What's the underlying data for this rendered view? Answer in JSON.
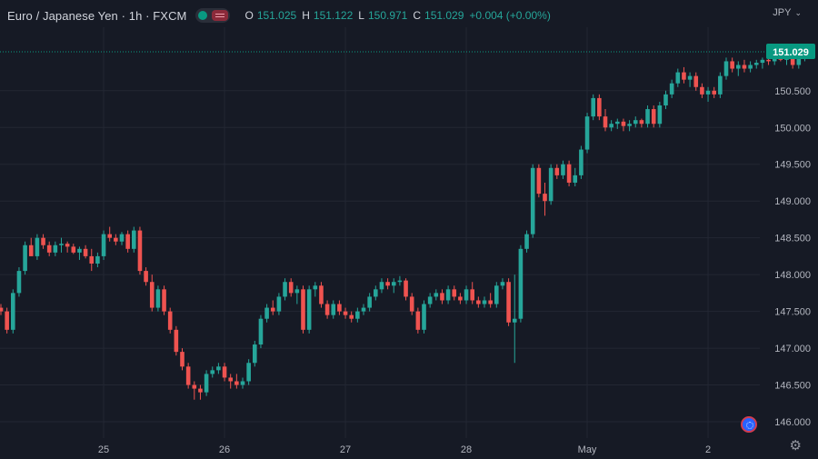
{
  "header": {
    "title": "Euro / Japanese Yen · 1h · FXCM",
    "ohlc": {
      "o_label": "O",
      "o": "151.025",
      "h_label": "H",
      "h": "151.122",
      "l_label": "L",
      "l": "150.971",
      "c_label": "C",
      "c": "151.029",
      "change": "+0.004 (+0.00%)"
    }
  },
  "currency_menu": {
    "label": "JPY"
  },
  "icons": {
    "settings": "gear-icon",
    "logo": "tradingview-logo-icon",
    "visibility": "eye-toggle-icon"
  },
  "colors": {
    "up": "#26a69a",
    "down": "#ef5350",
    "background": "#161a25",
    "last_price": "#089981"
  },
  "chart_data": {
    "type": "candlestick",
    "instrument": "Euro / Japanese Yen",
    "interval": "1h",
    "source": "FXCM",
    "currency": "JPY",
    "ylim": [
      145.9,
      151.5
    ],
    "y_ticks": [
      "146.000",
      "146.500",
      "147.000",
      "147.500",
      "148.000",
      "148.500",
      "149.000",
      "149.500",
      "150.000",
      "150.500"
    ],
    "x_ticks": [
      {
        "label": "25",
        "index": 17
      },
      {
        "label": "26",
        "index": 37
      },
      {
        "label": "27",
        "index": 57
      },
      {
        "label": "28",
        "index": 77
      },
      {
        "label": "May",
        "index": 97
      },
      {
        "label": "2",
        "index": 117
      }
    ],
    "last_price": 151.029,
    "last_price_label": "151.029",
    "grid": true,
    "ohlc": [
      [
        147.55,
        147.6,
        147.45,
        147.5
      ],
      [
        147.5,
        147.55,
        147.2,
        147.25
      ],
      [
        147.25,
        147.8,
        147.2,
        147.75
      ],
      [
        147.75,
        148.1,
        147.7,
        148.05
      ],
      [
        148.05,
        148.45,
        148.0,
        148.4
      ],
      [
        148.4,
        148.5,
        148.3,
        148.25
      ],
      [
        148.25,
        148.55,
        148.2,
        148.5
      ],
      [
        148.5,
        148.55,
        148.35,
        148.4
      ],
      [
        148.4,
        148.45,
        148.25,
        148.3
      ],
      [
        148.3,
        148.45,
        148.25,
        148.4
      ],
      [
        148.4,
        148.5,
        148.3,
        148.42
      ],
      [
        148.42,
        148.45,
        148.3,
        148.38
      ],
      [
        148.38,
        148.42,
        148.28,
        148.3
      ],
      [
        148.3,
        148.38,
        148.2,
        148.35
      ],
      [
        148.35,
        148.4,
        148.22,
        148.25
      ],
      [
        148.25,
        148.35,
        148.05,
        148.15
      ],
      [
        148.15,
        148.3,
        148.1,
        148.25
      ],
      [
        148.25,
        148.6,
        148.2,
        148.55
      ],
      [
        148.55,
        148.65,
        148.45,
        148.5
      ],
      [
        148.5,
        148.55,
        148.4,
        148.45
      ],
      [
        148.45,
        148.58,
        148.4,
        148.55
      ],
      [
        148.55,
        148.6,
        148.3,
        148.35
      ],
      [
        148.35,
        148.65,
        148.3,
        148.6
      ],
      [
        148.6,
        148.65,
        148.0,
        148.05
      ],
      [
        148.05,
        148.1,
        147.85,
        147.9
      ],
      [
        147.9,
        148.0,
        147.5,
        147.55
      ],
      [
        147.55,
        147.85,
        147.5,
        147.8
      ],
      [
        147.8,
        147.85,
        147.45,
        147.5
      ],
      [
        147.5,
        147.55,
        147.2,
        147.25
      ],
      [
        147.25,
        147.3,
        146.9,
        146.95
      ],
      [
        146.95,
        147.0,
        146.7,
        146.75
      ],
      [
        146.75,
        146.8,
        146.45,
        146.5
      ],
      [
        146.5,
        146.55,
        146.3,
        146.45
      ],
      [
        146.45,
        146.5,
        146.3,
        146.4
      ],
      [
        146.4,
        146.7,
        146.35,
        146.65
      ],
      [
        146.65,
        146.75,
        146.6,
        146.7
      ],
      [
        146.7,
        146.8,
        146.65,
        146.75
      ],
      [
        146.75,
        146.8,
        146.55,
        146.6
      ],
      [
        146.6,
        146.65,
        146.45,
        146.55
      ],
      [
        146.55,
        146.65,
        146.45,
        146.5
      ],
      [
        146.5,
        146.6,
        146.45,
        146.55
      ],
      [
        146.55,
        146.85,
        146.5,
        146.8
      ],
      [
        146.8,
        147.1,
        146.75,
        147.05
      ],
      [
        147.05,
        147.45,
        147.0,
        147.4
      ],
      [
        147.4,
        147.6,
        147.35,
        147.55
      ],
      [
        147.55,
        147.65,
        147.45,
        147.5
      ],
      [
        147.5,
        147.75,
        147.45,
        147.7
      ],
      [
        147.7,
        147.95,
        147.65,
        147.9
      ],
      [
        147.9,
        147.95,
        147.7,
        147.75
      ],
      [
        147.75,
        147.85,
        147.6,
        147.8
      ],
      [
        147.8,
        147.85,
        147.2,
        147.25
      ],
      [
        147.25,
        147.85,
        147.2,
        147.8
      ],
      [
        147.8,
        147.9,
        147.7,
        147.85
      ],
      [
        147.85,
        147.9,
        147.55,
        147.6
      ],
      [
        147.6,
        147.65,
        147.4,
        147.45
      ],
      [
        147.45,
        147.65,
        147.4,
        147.6
      ],
      [
        147.6,
        147.65,
        147.45,
        147.5
      ],
      [
        147.5,
        147.55,
        147.4,
        147.45
      ],
      [
        147.45,
        147.5,
        147.35,
        147.4
      ],
      [
        147.4,
        147.55,
        147.35,
        147.5
      ],
      [
        147.5,
        147.6,
        147.45,
        147.55
      ],
      [
        147.55,
        147.75,
        147.5,
        147.7
      ],
      [
        147.7,
        147.85,
        147.65,
        147.8
      ],
      [
        147.8,
        147.95,
        147.75,
        147.9
      ],
      [
        147.9,
        147.95,
        147.8,
        147.85
      ],
      [
        147.85,
        147.95,
        147.75,
        147.9
      ],
      [
        147.9,
        147.98,
        147.85,
        147.92
      ],
      [
        147.92,
        147.95,
        147.65,
        147.7
      ],
      [
        147.7,
        147.75,
        147.45,
        147.5
      ],
      [
        147.5,
        147.55,
        147.2,
        147.25
      ],
      [
        147.25,
        147.65,
        147.2,
        147.6
      ],
      [
        147.6,
        147.75,
        147.55,
        147.7
      ],
      [
        147.7,
        147.8,
        147.65,
        147.75
      ],
      [
        147.75,
        147.8,
        147.6,
        147.65
      ],
      [
        147.65,
        147.85,
        147.6,
        147.8
      ],
      [
        147.8,
        147.85,
        147.65,
        147.7
      ],
      [
        147.7,
        147.75,
        147.6,
        147.65
      ],
      [
        147.65,
        147.85,
        147.6,
        147.8
      ],
      [
        147.8,
        147.9,
        147.6,
        147.65
      ],
      [
        147.65,
        147.7,
        147.55,
        147.6
      ],
      [
        147.6,
        147.7,
        147.55,
        147.65
      ],
      [
        147.65,
        147.75,
        147.55,
        147.6
      ],
      [
        147.6,
        147.9,
        147.55,
        147.85
      ],
      [
        147.85,
        147.95,
        147.8,
        147.9
      ],
      [
        147.9,
        147.95,
        147.3,
        147.35
      ],
      [
        147.35,
        148.0,
        146.8,
        147.4
      ],
      [
        147.4,
        148.4,
        147.35,
        148.35
      ],
      [
        148.35,
        148.6,
        148.3,
        148.55
      ],
      [
        148.55,
        149.5,
        148.5,
        149.45
      ],
      [
        149.45,
        149.5,
        149.05,
        149.1
      ],
      [
        149.1,
        149.25,
        148.8,
        149.0
      ],
      [
        149.0,
        149.5,
        148.95,
        149.45
      ],
      [
        149.45,
        149.5,
        149.3,
        149.35
      ],
      [
        149.35,
        149.55,
        149.3,
        149.5
      ],
      [
        149.5,
        149.55,
        149.2,
        149.25
      ],
      [
        149.25,
        149.45,
        149.2,
        149.35
      ],
      [
        149.35,
        149.75,
        149.3,
        149.7
      ],
      [
        149.7,
        150.2,
        149.65,
        150.15
      ],
      [
        150.15,
        150.45,
        150.1,
        150.4
      ],
      [
        150.4,
        150.45,
        150.1,
        150.15
      ],
      [
        150.15,
        150.25,
        149.95,
        150.0
      ],
      [
        150.0,
        150.1,
        149.95,
        150.05
      ],
      [
        150.05,
        150.12,
        149.98,
        150.08
      ],
      [
        150.08,
        150.12,
        149.95,
        150.02
      ],
      [
        150.02,
        150.1,
        149.95,
        150.05
      ],
      [
        150.05,
        150.15,
        150.0,
        150.1
      ],
      [
        150.1,
        150.12,
        150.0,
        150.05
      ],
      [
        150.05,
        150.3,
        150.0,
        150.25
      ],
      [
        150.25,
        150.3,
        150.0,
        150.05
      ],
      [
        150.05,
        150.35,
        150.0,
        150.3
      ],
      [
        150.3,
        150.5,
        150.25,
        150.45
      ],
      [
        150.45,
        150.65,
        150.4,
        150.6
      ],
      [
        150.6,
        150.8,
        150.55,
        150.75
      ],
      [
        150.75,
        150.82,
        150.6,
        150.65
      ],
      [
        150.65,
        150.75,
        150.55,
        150.7
      ],
      [
        150.7,
        150.75,
        150.5,
        150.55
      ],
      [
        150.55,
        150.6,
        150.4,
        150.45
      ],
      [
        150.45,
        150.55,
        150.35,
        150.5
      ],
      [
        150.5,
        150.55,
        150.4,
        150.45
      ],
      [
        150.45,
        150.75,
        150.4,
        150.7
      ],
      [
        150.7,
        150.95,
        150.65,
        150.9
      ],
      [
        150.9,
        150.95,
        150.75,
        150.8
      ],
      [
        150.8,
        150.9,
        150.7,
        150.85
      ],
      [
        150.85,
        150.92,
        150.75,
        150.8
      ],
      [
        150.8,
        150.9,
        150.75,
        150.85
      ],
      [
        150.85,
        150.92,
        150.8,
        150.88
      ],
      [
        150.88,
        150.95,
        150.8,
        150.92
      ],
      [
        150.92,
        150.96,
        150.85,
        150.9
      ],
      [
        150.9,
        150.98,
        150.85,
        150.95
      ],
      [
        150.95,
        151.0,
        150.9,
        150.92
      ],
      [
        150.92,
        150.98,
        150.85,
        150.95
      ],
      [
        150.95,
        151.02,
        150.8,
        150.85
      ],
      [
        150.85,
        150.95,
        150.8,
        150.93
      ],
      [
        150.93,
        151.05,
        150.9,
        151.0
      ],
      [
        151.025,
        151.122,
        150.971,
        151.029
      ]
    ]
  }
}
